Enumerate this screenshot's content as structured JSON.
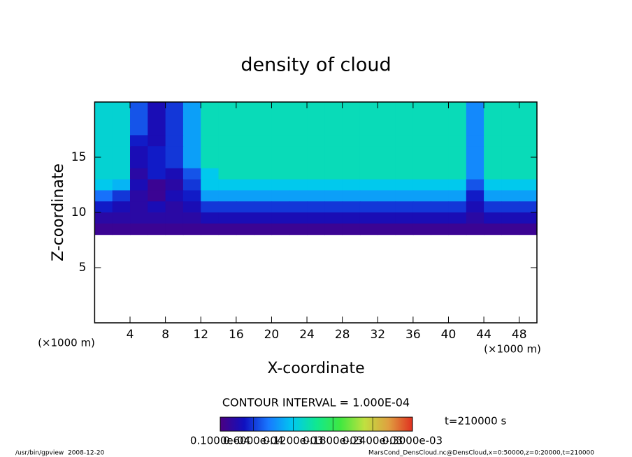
{
  "chart_data": {
    "type": "heatmap",
    "title": "density of cloud",
    "xlabel": "X-coordinate",
    "ylabel": "Z-coordinate",
    "xunit": "(×1000 m)",
    "yunit": "(×1000 m)",
    "xlim": [
      0,
      50
    ],
    "ylim": [
      0,
      20
    ],
    "xticks": [
      4,
      8,
      12,
      16,
      20,
      24,
      28,
      32,
      36,
      40,
      44,
      48
    ],
    "yticks": [
      5,
      10,
      15
    ],
    "x": [
      1,
      3,
      5,
      7,
      9,
      11,
      13,
      15,
      17,
      19,
      21,
      23,
      25,
      27,
      29,
      31,
      33,
      35,
      37,
      39,
      41,
      43,
      45,
      47,
      49
    ],
    "z": [
      19.5,
      18.5,
      17.5,
      16.5,
      15.5,
      14.5,
      13.5,
      12.5,
      11.5,
      10.5,
      9.5,
      8.5
    ],
    "values": [
      [
        0.00013,
        0.00013,
        7e-05,
        4e-05,
        6e-05,
        0.0001,
        0.00014,
        0.00014,
        0.00014,
        0.00014,
        0.00014,
        0.00014,
        0.00014,
        0.00014,
        0.00014,
        0.00014,
        0.00014,
        0.00014,
        0.00014,
        0.00014,
        0.00014,
        9e-05,
        0.00014,
        0.00014,
        0.00014
      ],
      [
        0.00013,
        0.00013,
        7e-05,
        4e-05,
        6e-05,
        0.0001,
        0.00014,
        0.00014,
        0.00014,
        0.00014,
        0.00014,
        0.00014,
        0.00014,
        0.00014,
        0.00014,
        0.00014,
        0.00014,
        0.00014,
        0.00014,
        0.00014,
        0.00014,
        9e-05,
        0.00014,
        0.00014,
        0.00014
      ],
      [
        0.00013,
        0.00013,
        7e-05,
        4e-05,
        6e-05,
        0.0001,
        0.00014,
        0.00014,
        0.00014,
        0.00014,
        0.00014,
        0.00014,
        0.00014,
        0.00014,
        0.00014,
        0.00014,
        0.00014,
        0.00014,
        0.00014,
        0.00014,
        0.00014,
        9e-05,
        0.00014,
        0.00014,
        0.00014
      ],
      [
        0.00013,
        0.00013,
        5e-05,
        4e-05,
        6e-05,
        0.0001,
        0.00014,
        0.00014,
        0.00014,
        0.00014,
        0.00014,
        0.00014,
        0.00014,
        0.00014,
        0.00014,
        0.00014,
        0.00014,
        0.00014,
        0.00014,
        0.00014,
        0.00014,
        9e-05,
        0.00014,
        0.00014,
        0.00014
      ],
      [
        0.00013,
        0.00013,
        4e-05,
        5e-05,
        6e-05,
        0.0001,
        0.00014,
        0.00014,
        0.00014,
        0.00014,
        0.00014,
        0.00014,
        0.00014,
        0.00014,
        0.00014,
        0.00014,
        0.00014,
        0.00014,
        0.00014,
        0.00014,
        0.00014,
        9e-05,
        0.00014,
        0.00014,
        0.00014
      ],
      [
        0.00013,
        0.00013,
        4e-05,
        5e-05,
        6e-05,
        0.0001,
        0.00014,
        0.00014,
        0.00014,
        0.00014,
        0.00014,
        0.00014,
        0.00014,
        0.00014,
        0.00014,
        0.00014,
        0.00014,
        0.00014,
        0.00014,
        0.00014,
        0.00014,
        9e-05,
        0.00014,
        0.00014,
        0.00014
      ],
      [
        0.00013,
        0.00013,
        3e-05,
        5e-05,
        4e-05,
        7e-05,
        0.00012,
        0.00014,
        0.00014,
        0.00014,
        0.00014,
        0.00014,
        0.00014,
        0.00014,
        0.00014,
        0.00014,
        0.00014,
        0.00014,
        0.00014,
        0.00014,
        0.00014,
        9e-05,
        0.00014,
        0.00014,
        0.00014
      ],
      [
        0.00012,
        0.00011,
        4e-05,
        2e-05,
        3e-05,
        6e-05,
        0.00012,
        0.00012,
        0.00012,
        0.00012,
        0.00012,
        0.00012,
        0.00012,
        0.00012,
        0.00012,
        0.00012,
        0.00012,
        0.00012,
        0.00012,
        0.00012,
        0.00012,
        7e-05,
        0.00012,
        0.00012,
        0.00012
      ],
      [
        8e-05,
        6e-05,
        3e-05,
        2e-05,
        4e-05,
        5e-05,
        0.0001,
        0.0001,
        0.0001,
        0.0001,
        0.0001,
        0.0001,
        0.0001,
        0.0001,
        0.0001,
        0.0001,
        0.0001,
        0.0001,
        0.0001,
        0.0001,
        0.0001,
        5e-05,
        0.0001,
        0.0001,
        0.0001
      ],
      [
        5e-05,
        4e-05,
        3e-05,
        4e-05,
        3e-05,
        4e-05,
        6e-05,
        6e-05,
        6e-05,
        6e-05,
        6e-05,
        6e-05,
        6e-05,
        6e-05,
        6e-05,
        6e-05,
        6e-05,
        6e-05,
        6e-05,
        6e-05,
        6e-05,
        4e-05,
        6e-05,
        6e-05,
        6e-05
      ],
      [
        3e-05,
        3e-05,
        3e-05,
        3e-05,
        3e-05,
        3e-05,
        4e-05,
        4e-05,
        4e-05,
        4e-05,
        4e-05,
        4e-05,
        4e-05,
        4e-05,
        4e-05,
        4e-05,
        4e-05,
        4e-05,
        4e-05,
        4e-05,
        4e-05,
        3e-05,
        4e-05,
        4e-05,
        4e-05
      ],
      [
        2e-05,
        2e-05,
        2e-05,
        2e-05,
        2e-05,
        2e-05,
        2e-05,
        2e-05,
        2e-05,
        2e-05,
        2e-05,
        2e-05,
        2e-05,
        2e-05,
        2e-05,
        2e-05,
        2e-05,
        2e-05,
        2e-05,
        2e-05,
        2e-05,
        2e-05,
        2e-05,
        2e-05,
        2e-05
      ]
    ],
    "colors": [
      "#4b0082",
      "#1010c0",
      "#1878ff",
      "#00c8f0",
      "#10e890",
      "#40e840",
      "#c0e040",
      "#e0a040",
      "#e03020"
    ],
    "clim": [
      1e-05,
      0.0003
    ],
    "cticks": [
      {
        "value": 1e-05,
        "label": "0.1000e-04"
      },
      {
        "value": 6e-05,
        "label": "0.6000e-04"
      },
      {
        "value": 0.00012,
        "label": "0.1200e-03"
      },
      {
        "value": 0.00018,
        "label": "0.1800e-03"
      },
      {
        "value": 0.00024,
        "label": "0.2400e-03"
      },
      {
        "value": 0.0003,
        "label": "0.3000e-03"
      }
    ],
    "contour_note": "CONTOUR INTERVAL = 1.000E-04",
    "time_label": "t=210000 s",
    "footer_left": "/usr/bin/gpview  2008-12-20",
    "footer_right": "MarsCond_DensCloud.nc@DensCloud,x=0:50000,z=0:20000,t=210000"
  }
}
